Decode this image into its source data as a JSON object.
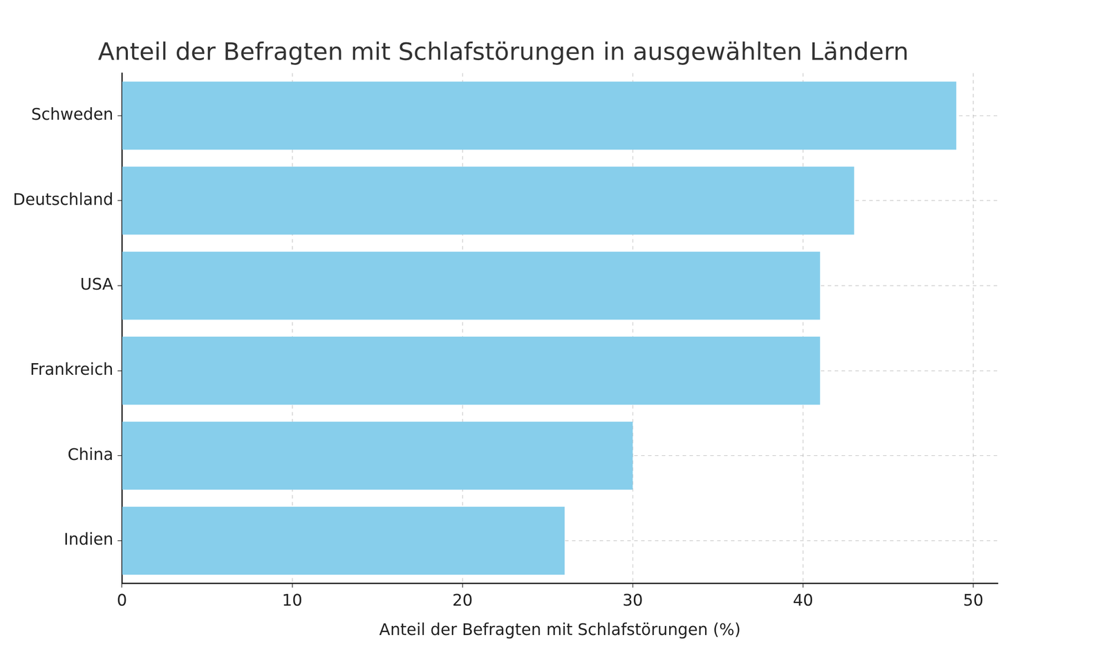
{
  "chart_data": {
    "type": "bar",
    "orientation": "horizontal",
    "title": "Anteil der Befragten mit Schlafstörungen in ausgewählten Ländern",
    "xlabel": "Anteil der Befragten mit Schlafstörungen (%)",
    "categories": [
      "Schweden",
      "Deutschland",
      "USA",
      "Frankreich",
      "China",
      "Indien"
    ],
    "values": [
      49,
      43,
      41,
      41,
      30,
      26
    ],
    "color": "#87ceeb",
    "xlim": [
      0,
      51.45
    ],
    "xticks": [
      0,
      10,
      20,
      30,
      40,
      50
    ],
    "grid": true
  }
}
